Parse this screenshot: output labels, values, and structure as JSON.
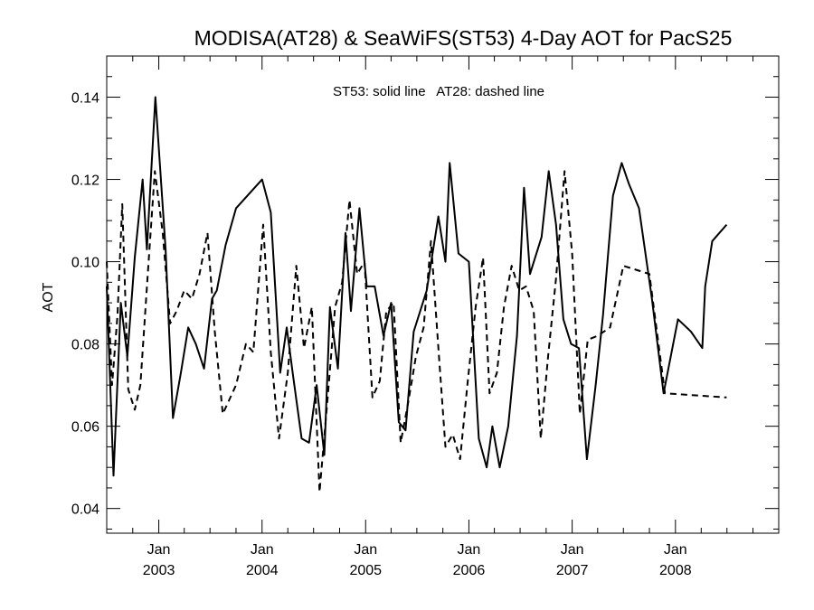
{
  "chart_data": {
    "type": "line",
    "title": "MODISA(AT28) & SeaWiFS(ST53) 4-Day AOT for PacS25",
    "ylabel": "AOT",
    "xlabel": "",
    "annotation": "ST53: solid line   AT28: dashed line",
    "xlim": [
      "2002-07-01",
      "2008-12-31"
    ],
    "ylim": [
      0.034,
      0.15
    ],
    "yticks": [
      0.04,
      0.06,
      0.08,
      0.1,
      0.12,
      0.14
    ],
    "ytick_labels": [
      "0.04",
      "0.06",
      "0.08",
      "0.10",
      "0.12",
      "0.14"
    ],
    "xticks": [
      {
        "date": "2003-01-01",
        "month": "Jan",
        "year": "2003"
      },
      {
        "date": "2004-01-01",
        "month": "Jan",
        "year": "2004"
      },
      {
        "date": "2005-01-01",
        "month": "Jan",
        "year": "2005"
      },
      {
        "date": "2006-01-01",
        "month": "Jan",
        "year": "2006"
      },
      {
        "date": "2007-01-01",
        "month": "Jan",
        "year": "2007"
      },
      {
        "date": "2008-01-01",
        "month": "Jan",
        "year": "2008"
      }
    ],
    "grid": false,
    "series": [
      {
        "name": "ST53",
        "style": "solid",
        "color": "#000000",
        "points": [
          [
            "2002-07-01",
            0.094
          ],
          [
            "2002-07-25",
            0.048
          ],
          [
            "2002-08-20",
            0.09
          ],
          [
            "2002-09-12",
            0.077
          ],
          [
            "2002-10-08",
            0.101
          ],
          [
            "2002-11-05",
            0.12
          ],
          [
            "2002-11-20",
            0.103
          ],
          [
            "2002-12-20",
            0.14
          ],
          [
            "2003-01-25",
            0.103
          ],
          [
            "2003-02-20",
            0.062
          ],
          [
            "2003-03-20",
            0.073
          ],
          [
            "2003-04-15",
            0.084
          ],
          [
            "2003-05-12",
            0.08
          ],
          [
            "2003-06-10",
            0.074
          ],
          [
            "2003-07-08",
            0.091
          ],
          [
            "2003-07-25",
            0.093
          ],
          [
            "2003-08-25",
            0.104
          ],
          [
            "2003-10-01",
            0.113
          ],
          [
            "2004-01-01",
            0.12
          ],
          [
            "2004-02-01",
            0.112
          ],
          [
            "2004-03-05",
            0.073
          ],
          [
            "2004-03-28",
            0.084
          ],
          [
            "2004-04-20",
            0.072
          ],
          [
            "2004-05-20",
            0.057
          ],
          [
            "2004-06-15",
            0.056
          ],
          [
            "2004-07-12",
            0.07
          ],
          [
            "2004-08-08",
            0.053
          ],
          [
            "2004-08-28",
            0.089
          ],
          [
            "2004-09-25",
            0.074
          ],
          [
            "2004-10-22",
            0.107
          ],
          [
            "2004-11-10",
            0.088
          ],
          [
            "2004-12-10",
            0.113
          ],
          [
            "2005-01-05",
            0.094
          ],
          [
            "2005-02-02",
            0.094
          ],
          [
            "2005-03-05",
            0.082
          ],
          [
            "2005-04-01",
            0.09
          ],
          [
            "2005-04-28",
            0.061
          ],
          [
            "2005-05-22",
            0.059
          ],
          [
            "2005-06-20",
            0.083
          ],
          [
            "2005-08-05",
            0.093
          ],
          [
            "2005-09-15",
            0.111
          ],
          [
            "2005-10-10",
            0.1
          ],
          [
            "2005-10-25",
            0.124
          ],
          [
            "2005-11-25",
            0.102
          ],
          [
            "2006-01-01",
            0.1
          ],
          [
            "2006-02-05",
            0.057
          ],
          [
            "2006-03-05",
            0.05
          ],
          [
            "2006-03-25",
            0.06
          ],
          [
            "2006-04-20",
            0.05
          ],
          [
            "2006-05-20",
            0.06
          ],
          [
            "2006-06-20",
            0.082
          ],
          [
            "2006-07-15",
            0.118
          ],
          [
            "2006-08-05",
            0.097
          ],
          [
            "2006-09-15",
            0.106
          ],
          [
            "2006-10-10",
            0.122
          ],
          [
            "2006-11-05",
            0.109
          ],
          [
            "2006-12-01",
            0.086
          ],
          [
            "2006-12-28",
            0.08
          ],
          [
            "2007-01-25",
            0.079
          ],
          [
            "2007-02-22",
            0.052
          ],
          [
            "2007-03-25",
            0.07
          ],
          [
            "2007-04-20",
            0.087
          ],
          [
            "2007-05-25",
            0.116
          ],
          [
            "2007-06-25",
            0.124
          ],
          [
            "2007-07-20",
            0.119
          ],
          [
            "2007-08-25",
            0.113
          ],
          [
            "2007-10-10",
            0.091
          ],
          [
            "2007-11-20",
            0.068
          ],
          [
            "2008-01-10",
            0.086
          ],
          [
            "2008-02-25",
            0.083
          ],
          [
            "2008-04-05",
            0.079
          ],
          [
            "2008-04-15",
            0.094
          ],
          [
            "2008-05-10",
            0.105
          ],
          [
            "2008-06-30",
            0.109
          ]
        ]
      },
      {
        "name": "AT28",
        "style": "dashed",
        "color": "#000000",
        "points": [
          [
            "2002-07-01",
            0.1
          ],
          [
            "2002-07-20",
            0.07
          ],
          [
            "2002-08-08",
            0.087
          ],
          [
            "2002-08-25",
            0.114
          ],
          [
            "2002-09-15",
            0.069
          ],
          [
            "2002-10-08",
            0.064
          ],
          [
            "2002-10-28",
            0.07
          ],
          [
            "2002-11-25",
            0.099
          ],
          [
            "2002-12-18",
            0.122
          ],
          [
            "2003-01-15",
            0.107
          ],
          [
            "2003-02-10",
            0.085
          ],
          [
            "2003-03-05",
            0.088
          ],
          [
            "2003-04-01",
            0.093
          ],
          [
            "2003-04-28",
            0.091
          ],
          [
            "2003-05-25",
            0.097
          ],
          [
            "2003-06-22",
            0.107
          ],
          [
            "2003-07-18",
            0.083
          ],
          [
            "2003-08-15",
            0.063
          ],
          [
            "2003-10-01",
            0.07
          ],
          [
            "2003-11-05",
            0.08
          ],
          [
            "2003-12-01",
            0.078
          ],
          [
            "2004-01-05",
            0.109
          ],
          [
            "2004-02-01",
            0.078
          ],
          [
            "2004-03-01",
            0.057
          ],
          [
            "2004-04-01",
            0.073
          ],
          [
            "2004-05-01",
            0.099
          ],
          [
            "2004-05-28",
            0.079
          ],
          [
            "2004-06-25",
            0.089
          ],
          [
            "2004-07-22",
            0.044
          ],
          [
            "2004-08-20",
            0.067
          ],
          [
            "2004-09-15",
            0.089
          ],
          [
            "2004-10-10",
            0.095
          ],
          [
            "2004-11-05",
            0.115
          ],
          [
            "2004-12-02",
            0.097
          ],
          [
            "2004-12-28",
            0.1
          ],
          [
            "2005-01-25",
            0.067
          ],
          [
            "2005-02-20",
            0.071
          ],
          [
            "2005-03-15",
            0.088
          ],
          [
            "2005-04-10",
            0.09
          ],
          [
            "2005-05-05",
            0.056
          ],
          [
            "2005-06-01",
            0.066
          ],
          [
            "2005-06-28",
            0.077
          ],
          [
            "2005-07-25",
            0.084
          ],
          [
            "2005-08-20",
            0.105
          ],
          [
            "2005-09-15",
            0.079
          ],
          [
            "2005-10-10",
            0.055
          ],
          [
            "2005-11-05",
            0.058
          ],
          [
            "2005-12-01",
            0.052
          ],
          [
            "2005-12-28",
            0.071
          ],
          [
            "2006-01-25",
            0.089
          ],
          [
            "2006-02-20",
            0.101
          ],
          [
            "2006-03-15",
            0.068
          ],
          [
            "2006-04-10",
            0.073
          ],
          [
            "2006-05-05",
            0.089
          ],
          [
            "2006-06-01",
            0.099
          ],
          [
            "2006-06-28",
            0.093
          ],
          [
            "2006-07-22",
            0.094
          ],
          [
            "2006-08-18",
            0.088
          ],
          [
            "2006-09-12",
            0.057
          ],
          [
            "2006-10-08",
            0.077
          ],
          [
            "2006-11-05",
            0.096
          ],
          [
            "2006-12-05",
            0.122
          ],
          [
            "2007-01-01",
            0.102
          ],
          [
            "2007-01-28",
            0.063
          ],
          [
            "2007-02-25",
            0.081
          ],
          [
            "2007-04-01",
            0.082
          ],
          [
            "2007-05-15",
            0.084
          ],
          [
            "2007-07-01",
            0.099
          ],
          [
            "2007-10-01",
            0.097
          ],
          [
            "2007-11-25",
            0.068
          ],
          [
            "2008-06-30",
            0.067
          ]
        ]
      }
    ]
  }
}
